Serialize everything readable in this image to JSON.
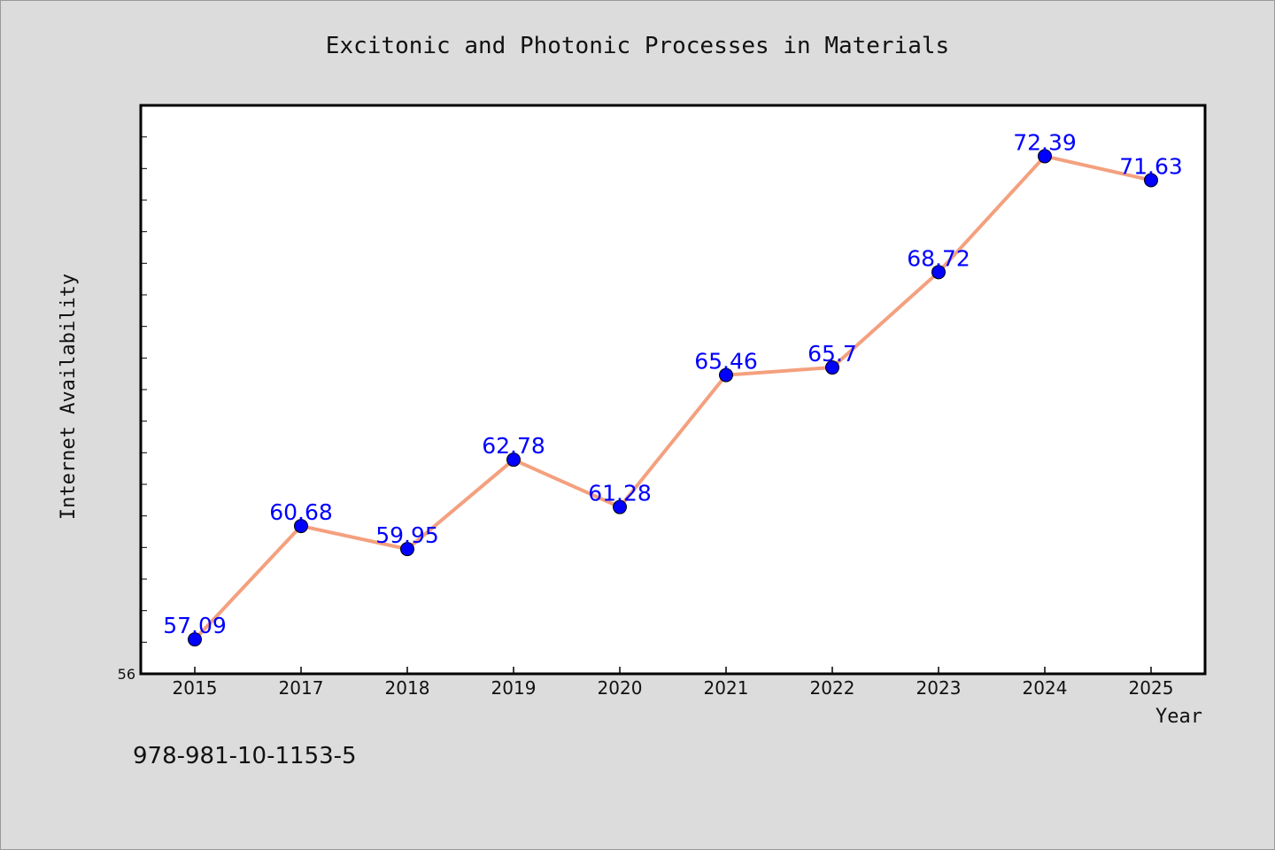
{
  "chart_data": {
    "type": "line",
    "title": "Excitonic and Photonic Processes in Materials",
    "xlabel": "Year",
    "ylabel": "Internet Availability",
    "categories": [
      "2015",
      "2017",
      "2018",
      "2019",
      "2020",
      "2021",
      "2022",
      "2023",
      "2024",
      "2025"
    ],
    "series": [
      {
        "values": [
          57.09,
          60.68,
          59.95,
          62.78,
          61.28,
          65.46,
          65.7,
          68.72,
          72.39,
          71.63
        ]
      }
    ],
    "data_labels": [
      "57.09",
      "60.68",
      "59.95",
      "62.78",
      "61.28",
      "65.46",
      "65.7",
      "68.72",
      "72.39",
      "71.63"
    ],
    "ylim": [
      56,
      74
    ],
    "yticks_labeled": [
      "56"
    ],
    "grid": false,
    "legend": "none",
    "colors": {
      "line": "#f4a07e",
      "marker": "#0000ff",
      "labels": "#0000ff"
    }
  },
  "footer": {
    "isbn": "978-981-10-1153-5"
  }
}
